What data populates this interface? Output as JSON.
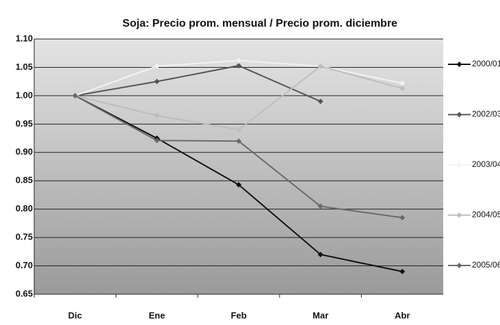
{
  "chart_data": {
    "type": "line",
    "title": "Soja: Precio prom. mensual / Precio prom. diciembre",
    "categories": [
      "Dic",
      "Ene",
      "Feb",
      "Mar",
      "Abr"
    ],
    "series": [
      {
        "name": "2000/01",
        "color": "#111111",
        "values": [
          1.0,
          0.925,
          0.843,
          0.72,
          0.69
        ]
      },
      {
        "name": "2002/03",
        "color": "#555555",
        "values": [
          1.0,
          1.025,
          1.053,
          0.99,
          null
        ]
      },
      {
        "name": "2003/04",
        "color": "#f2f2f2",
        "values": [
          1.0,
          1.052,
          1.062,
          1.052,
          1.022
        ]
      },
      {
        "name": "2004/05",
        "color": "#bdbdbd",
        "values": [
          1.0,
          0.965,
          0.94,
          1.052,
          1.013
        ]
      },
      {
        "name": "2005/06",
        "color": "#6a6a6a",
        "values": [
          1.0,
          0.921,
          0.92,
          0.805,
          0.785
        ]
      }
    ],
    "ylim": [
      0.65,
      1.1
    ],
    "yticks": [
      {
        "value": 0.65,
        "label": "0.65"
      },
      {
        "value": 0.7,
        "label": "0.70"
      },
      {
        "value": 0.75,
        "label": "0.75"
      },
      {
        "value": 0.8,
        "label": "0.80"
      },
      {
        "value": 0.85,
        "label": "0.85"
      },
      {
        "value": 0.9,
        "label": "0.90"
      },
      {
        "value": 0.95,
        "label": "0.95"
      },
      {
        "value": 1.0,
        "label": "1.00"
      },
      {
        "value": 1.05,
        "label": "1.05"
      },
      {
        "value": 1.1,
        "label": "1.10"
      }
    ],
    "grid": true,
    "legend": "right"
  }
}
